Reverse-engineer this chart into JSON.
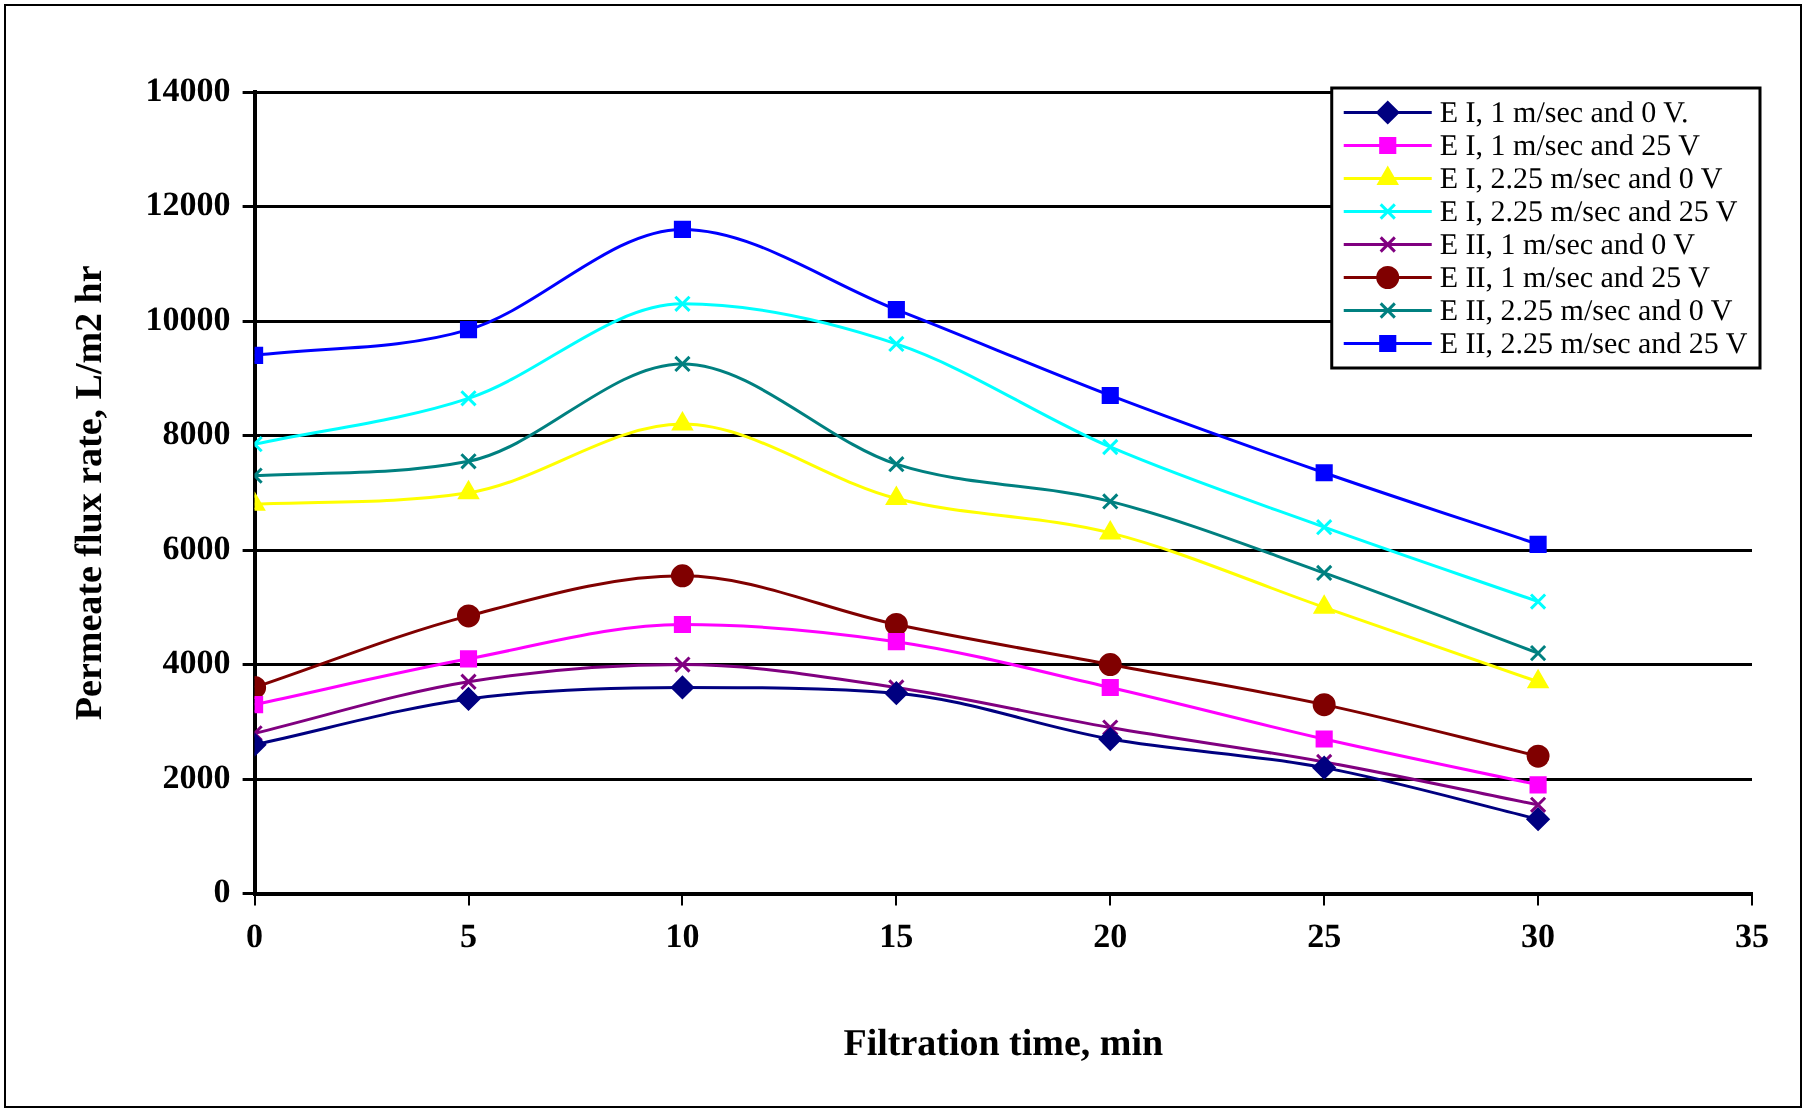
{
  "chart_data": {
    "type": "line",
    "xlabel": "Filtration time, min",
    "ylabel": "Permeate flux rate, L/m2 hr",
    "x": [
      0,
      5,
      10,
      15,
      20,
      25,
      30
    ],
    "xlim": [
      0,
      35
    ],
    "xticks": [
      0,
      5,
      10,
      15,
      20,
      25,
      30,
      35
    ],
    "ylim": [
      0,
      14000
    ],
    "yticks": [
      0,
      2000,
      4000,
      6000,
      8000,
      10000,
      12000,
      14000
    ],
    "grid": "y",
    "legend": "top right",
    "series": [
      {
        "name": "E I, 1 m/sec and 0 V.",
        "color": "#000080",
        "marker": "diamond",
        "values": [
          2600,
          3400,
          3600,
          3500,
          2700,
          2200,
          1300
        ]
      },
      {
        "name": "E I, 1 m/sec and 25 V",
        "color": "#ff00ff",
        "marker": "square",
        "values": [
          3300,
          4100,
          4700,
          4400,
          3600,
          2700,
          1900
        ]
      },
      {
        "name": "E I, 2.25 m/sec and 0 V",
        "color": "#ffff00",
        "marker": "triangle",
        "values": [
          6800,
          7000,
          8200,
          6900,
          6300,
          5000,
          3700
        ]
      },
      {
        "name": "E I, 2.25 m/sec and 25 V",
        "color": "#00ffff",
        "marker": "cross",
        "values": [
          7850,
          8650,
          10300,
          9600,
          7800,
          6400,
          5100
        ]
      },
      {
        "name": "E II, 1 m/sec and 0 V",
        "color": "#800080",
        "marker": "cross",
        "values": [
          2800,
          3700,
          4000,
          3600,
          2900,
          2300,
          1550
        ]
      },
      {
        "name": "E II, 1 m/sec and 25 V",
        "color": "#800000",
        "marker": "circle",
        "values": [
          3600,
          4850,
          5550,
          4700,
          4000,
          3300,
          2400
        ]
      },
      {
        "name": "E II, 2.25 m/sec and 0 V",
        "color": "#008080",
        "marker": "cross",
        "values": [
          7300,
          7550,
          9250,
          7500,
          6850,
          5600,
          4200
        ]
      },
      {
        "name": "E II, 2.25 m/sec and 25 V",
        "color": "#0000ff",
        "marker": "square",
        "values": [
          9400,
          9850,
          11600,
          10200,
          8700,
          7350,
          6100
        ]
      }
    ]
  }
}
